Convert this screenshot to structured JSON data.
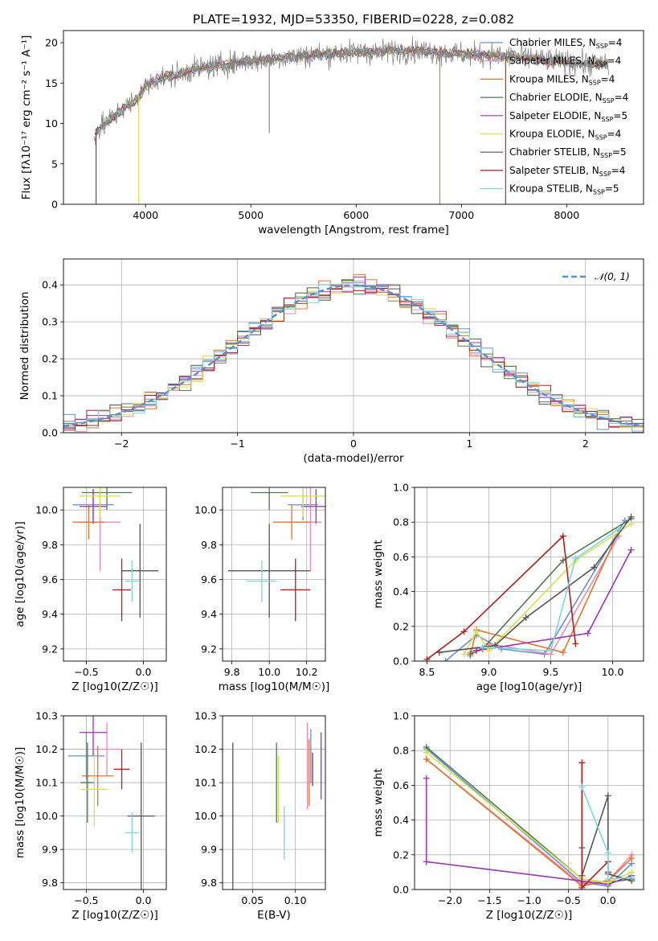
{
  "figure_title": "PLATE=1932, MJD=53350, FIBERID=0228, z=0.082",
  "colors": {
    "Chabrier MILES": "#6a8fd6",
    "Salpeter MILES": "#e98bb3",
    "Kroupa MILES": "#e0752d",
    "Chabrier ELODIE": "#4f7a4f",
    "Salpeter ELODIE": "#9b35b0",
    "Kroupa ELODIE": "#d7e04e",
    "Chabrier STELIB": "#555555",
    "Salpeter STELIB": "#b21d1d",
    "Kroupa STELIB": "#7dd6dc",
    "gaussian": "#5b8dd4",
    "observed": "#808080"
  },
  "chart_data": [
    {
      "id": "spectrum",
      "type": "line",
      "title": "PLATE=1932, MJD=53350, FIBERID=0228, z=0.082",
      "xlabel": "wavelength [Angstrom, rest frame]",
      "ylabel": "Flux [fλ10⁻¹⁷ erg cm⁻² s⁻¹ A⁻¹]",
      "xlim": [
        3220,
        8730
      ],
      "ylim": [
        0,
        21.5
      ],
      "xticks": [
        4000,
        5000,
        6000,
        7000,
        8000
      ],
      "xtick_labels": [
        "4000",
        "5000",
        "6000",
        "7000",
        "8000"
      ],
      "yticks": [
        0,
        5,
        10,
        15,
        20
      ],
      "ytick_labels": [
        "0",
        "5",
        "10",
        "15",
        "20"
      ],
      "grid": false,
      "legend": "upper right",
      "legend_entries": [
        {
          "name": "Chabrier MILES",
          "ssp": "4"
        },
        {
          "name": "Salpeter MILES",
          "ssp": "4"
        },
        {
          "name": "Kroupa MILES",
          "ssp": "4"
        },
        {
          "name": "Chabrier ELODIE",
          "ssp": "4"
        },
        {
          "name": "Salpeter ELODIE",
          "ssp": "5"
        },
        {
          "name": "Kroupa ELODIE",
          "ssp": "4"
        },
        {
          "name": "Chabrier STELIB",
          "ssp": "5"
        },
        {
          "name": "Salpeter STELIB",
          "ssp": "4"
        },
        {
          "name": "Kroupa STELIB",
          "ssp": "5"
        }
      ],
      "continuum": {
        "x": [
          3500,
          3600,
          3700,
          3800,
          3900,
          4000,
          4100,
          4200,
          4300,
          4400,
          4500,
          4600,
          4700,
          4800,
          5000,
          5200,
          5400,
          5600,
          5800,
          6000,
          6200,
          6400,
          6600,
          6800,
          7000,
          7200,
          7400,
          7600,
          7800,
          8000,
          8200,
          8400
        ],
        "y": [
          8.5,
          9.8,
          10.8,
          12.0,
          12.8,
          14.6,
          15.4,
          15.8,
          16.0,
          16.5,
          16.8,
          17.0,
          17.2,
          17.4,
          17.8,
          18.0,
          18.3,
          18.5,
          18.7,
          18.8,
          18.9,
          19.0,
          19.0,
          18.8,
          18.6,
          18.5,
          18.3,
          18.2,
          17.8,
          17.6,
          17.4,
          17.3
        ]
      },
      "dips": [
        {
          "x": 3530,
          "y": 0,
          "label": "Salpeter STELIB"
        },
        {
          "x": 3935,
          "y": 0,
          "label": "Kroupa ELODIE"
        },
        {
          "x": 5175,
          "y": 8.8,
          "label": "observed"
        },
        {
          "x": 6795,
          "y": 0,
          "label": "Kroupa MILES"
        },
        {
          "x": 7420,
          "y": 0,
          "label": "Salpeter STELIB"
        }
      ]
    },
    {
      "id": "residuals",
      "type": "histogram",
      "xlabel": "(data-model)/error",
      "ylabel": "Normed distribution",
      "xlim": [
        -2.5,
        2.5
      ],
      "ylim": [
        0,
        0.47
      ],
      "xticks": [
        -2,
        -1,
        0,
        1,
        2
      ],
      "xtick_labels": [
        "−2",
        "−1",
        "0",
        "1",
        "2"
      ],
      "yticks": [
        0,
        0.1,
        0.2,
        0.3,
        0.4
      ],
      "ytick_labels": [
        "0.0",
        "0.1",
        "0.2",
        "0.3",
        "0.4"
      ],
      "grid": true,
      "legend": "upper right",
      "legend_label": "𝒩(0, 1)",
      "bin_width": 0.1
    },
    {
      "id": "age-vs-Z",
      "type": "errorbar",
      "xlabel": "Z [log10(Z/Z☉)]",
      "ylabel": "age  [log10(age/yr)]",
      "xlim": [
        -0.7,
        0.2
      ],
      "ylim": [
        9.13,
        10.13
      ],
      "xticks": [
        -0.5,
        0.0
      ],
      "xtick_labels": [
        "−0.5",
        "0.0"
      ],
      "yticks": [
        9.2,
        9.4,
        9.6,
        9.8,
        10.0
      ],
      "ytick_labels": [
        "9.2",
        "9.4",
        "9.6",
        "9.8",
        "10.0"
      ],
      "grid": true,
      "points": [
        {
          "series": "Chabrier MILES",
          "x": -0.44,
          "xerr": 0.18,
          "y": 10.03,
          "yerr": 0.09
        },
        {
          "series": "Salpeter MILES",
          "x": -0.38,
          "xerr": 0.18,
          "y": 9.93,
          "yerr": 0.28
        },
        {
          "series": "Kroupa MILES",
          "x": -0.48,
          "xerr": 0.14,
          "y": 9.93,
          "yerr": 0.1
        },
        {
          "series": "Chabrier ELODIE",
          "x": -0.32,
          "xerr": 0.22,
          "y": 10.1,
          "yerr": 0.1
        },
        {
          "series": "Salpeter ELODIE",
          "x": -0.44,
          "xerr": 0.12,
          "y": 10.02,
          "yerr": 0.1
        },
        {
          "series": "Kroupa ELODIE",
          "x": -0.38,
          "xerr": 0.18,
          "y": 10.08,
          "yerr": 0.12
        },
        {
          "series": "Chabrier STELIB",
          "x": -0.03,
          "xerr": 0.16,
          "y": 9.65,
          "yerr": 0.27
        },
        {
          "series": "Salpeter STELIB",
          "x": -0.19,
          "xerr": 0.08,
          "y": 9.54,
          "yerr": 0.18
        },
        {
          "series": "Kroupa STELIB",
          "x": -0.1,
          "xerr": 0.06,
          "y": 9.59,
          "yerr": 0.12
        }
      ]
    },
    {
      "id": "age-vs-mass",
      "type": "errorbar",
      "xlabel": "mass [log10(M/M☉)]",
      "ylabel": "",
      "xlim": [
        9.75,
        10.3
      ],
      "ylim": [
        9.13,
        10.13
      ],
      "xticks": [
        9.8,
        10.0,
        10.2
      ],
      "xtick_labels": [
        "9.8",
        "10.0",
        "10.2"
      ],
      "yticks": [
        9.2,
        9.4,
        9.6,
        9.8,
        10.0
      ],
      "ytick_labels": [
        "9.2",
        "9.4",
        "9.6",
        "9.8",
        "10.0"
      ],
      "grid": true,
      "points": [
        {
          "series": "Chabrier MILES",
          "x": 10.18,
          "xerr": 0.08,
          "y": 10.03,
          "yerr": 0.09
        },
        {
          "series": "Salpeter MILES",
          "x": 10.22,
          "xerr": 0.06,
          "y": 9.93,
          "yerr": 0.28
        },
        {
          "series": "Kroupa MILES",
          "x": 10.12,
          "xerr": 0.1,
          "y": 9.93,
          "yerr": 0.1
        },
        {
          "series": "Chabrier ELODIE",
          "x": 10.0,
          "xerr": 0.1,
          "y": 10.1,
          "yerr": 0.1
        },
        {
          "series": "Salpeter ELODIE",
          "x": 10.25,
          "xerr": 0.08,
          "y": 10.02,
          "yerr": 0.1
        },
        {
          "series": "Kroupa ELODIE",
          "x": 10.18,
          "xerr": 0.12,
          "y": 10.08,
          "yerr": 0.12
        },
        {
          "series": "Chabrier STELIB",
          "x": 10.0,
          "xerr": 0.22,
          "y": 9.65,
          "yerr": 0.27
        },
        {
          "series": "Salpeter STELIB",
          "x": 10.14,
          "xerr": 0.08,
          "y": 9.54,
          "yerr": 0.18
        },
        {
          "series": "Kroupa STELIB",
          "x": 9.96,
          "xerr": 0.08,
          "y": 9.59,
          "yerr": 0.12
        }
      ]
    },
    {
      "id": "massweight-vs-age",
      "type": "line",
      "xlabel": "age  [log10(age/yr)]",
      "ylabel": "mass weight",
      "xlim": [
        8.4,
        10.25
      ],
      "ylim": [
        0,
        1.0
      ],
      "xticks": [
        8.5,
        9.0,
        9.5,
        10.0
      ],
      "xtick_labels": [
        "8.5",
        "9.0",
        "9.5",
        "10.0"
      ],
      "yticks": [
        0,
        0.2,
        0.4,
        0.6,
        0.8,
        1.0
      ],
      "ytick_labels": [
        "0.0",
        "0.2",
        "0.4",
        "0.6",
        "0.8",
        "1.0"
      ],
      "grid": true,
      "series": [
        {
          "name": "Chabrier MILES",
          "x": [
            8.65,
            8.9,
            9.1,
            9.45,
            10.1
          ],
          "y": [
            0.0,
            0.15,
            0.07,
            0.04,
            0.81
          ]
        },
        {
          "name": "Salpeter MILES",
          "x": [
            8.85,
            9.0,
            9.5,
            10.05
          ],
          "y": [
            0.05,
            0.1,
            0.04,
            0.72
          ]
        },
        {
          "name": "Kroupa MILES",
          "x": [
            8.85,
            8.9,
            9.6,
            10.05
          ],
          "y": [
            0.03,
            0.18,
            0.05,
            0.75
          ]
        },
        {
          "name": "Chabrier ELODIE",
          "x": [
            8.85,
            8.95,
            9.6,
            10.15
          ],
          "y": [
            0.04,
            0.07,
            0.58,
            0.82
          ]
        },
        {
          "name": "Salpeter ELODIE",
          "x": [
            8.9,
            9.8,
            10.15
          ],
          "y": [
            0.06,
            0.16,
            0.64
          ]
        },
        {
          "name": "Kroupa ELODIE",
          "x": [
            8.8,
            8.9,
            9.0,
            9.7,
            10.15
          ],
          "y": [
            0.04,
            0.17,
            0.06,
            0.58,
            0.79
          ]
        },
        {
          "name": "Chabrier STELIB",
          "x": [
            8.6,
            9.05,
            9.3,
            9.85,
            10.15
          ],
          "y": [
            0.05,
            0.09,
            0.25,
            0.54,
            0.83
          ]
        },
        {
          "name": "Salpeter STELIB",
          "x": [
            8.5,
            8.8,
            9.6,
            9.7
          ],
          "y": [
            0.01,
            0.17,
            0.72,
            0.1
          ]
        },
        {
          "name": "Kroupa STELIB",
          "x": [
            8.95,
            9.5,
            9.7,
            10.05
          ],
          "y": [
            0.08,
            0.06,
            0.59,
            0.76
          ]
        }
      ]
    },
    {
      "id": "mass-vs-Z",
      "type": "errorbar",
      "xlabel": "Z [log10(Z/Z☉)]",
      "ylabel": "mass [log10(M/M☉)]",
      "xlim": [
        -0.7,
        0.2
      ],
      "ylim": [
        9.78,
        10.3
      ],
      "xticks": [
        -0.5,
        0.0
      ],
      "xtick_labels": [
        "−0.5",
        "0.0"
      ],
      "yticks": [
        9.8,
        9.9,
        10.0,
        10.1,
        10.2,
        10.3
      ],
      "ytick_labels": [
        "9.8",
        "9.9",
        "10.0",
        "10.1",
        "10.2",
        "10.3"
      ],
      "grid": true,
      "points": [
        {
          "series": "Chabrier MILES",
          "x": -0.5,
          "xerr": 0.16,
          "y": 10.18,
          "yerr": 0.07
        },
        {
          "series": "Salpeter MILES",
          "x": -0.32,
          "xerr": 0.12,
          "y": 10.2,
          "yerr": 0.08
        },
        {
          "series": "Kroupa MILES",
          "x": -0.4,
          "xerr": 0.14,
          "y": 10.12,
          "yerr": 0.09
        },
        {
          "series": "Chabrier ELODIE",
          "x": -0.49,
          "xerr": 0.06,
          "y": 10.1,
          "yerr": 0.12
        },
        {
          "series": "Salpeter ELODIE",
          "x": -0.44,
          "xerr": 0.12,
          "y": 10.25,
          "yerr": 0.07
        },
        {
          "series": "Kroupa ELODIE",
          "x": -0.43,
          "xerr": 0.12,
          "y": 10.08,
          "yerr": 0.11
        },
        {
          "series": "Chabrier STELIB",
          "x": -0.02,
          "xerr": 0.12,
          "y": 10.0,
          "yerr": 0.22
        },
        {
          "series": "Salpeter STELIB",
          "x": -0.19,
          "xerr": 0.07,
          "y": 10.14,
          "yerr": 0.06
        },
        {
          "series": "Kroupa STELIB",
          "x": -0.1,
          "xerr": 0.06,
          "y": 9.95,
          "yerr": 0.06
        }
      ]
    },
    {
      "id": "mass-vs-ebv",
      "type": "errorbar",
      "xlabel": "E(B-V)",
      "ylabel": "",
      "xlim": [
        0.015,
        0.135
      ],
      "ylim": [
        9.78,
        10.3
      ],
      "xticks": [
        0.05,
        0.1
      ],
      "xtick_labels": [
        "0.05",
        "0.10"
      ],
      "yticks": [
        9.8,
        9.9,
        10.0,
        10.1,
        10.2,
        10.3
      ],
      "ytick_labels": [
        "9.8",
        "9.9",
        "10.0",
        "10.1",
        "10.2",
        "10.3"
      ],
      "grid": true,
      "points": [
        {
          "series": "Chabrier MILES",
          "x": 0.118,
          "xerr": 0,
          "y": 10.18,
          "yerr": 0.08
        },
        {
          "series": "Salpeter MILES",
          "x": 0.114,
          "xerr": 0,
          "y": 10.15,
          "yerr": 0.13
        },
        {
          "series": "Kroupa MILES",
          "x": 0.116,
          "xerr": 0,
          "y": 10.13,
          "yerr": 0.1
        },
        {
          "series": "Chabrier ELODIE",
          "x": 0.078,
          "xerr": 0,
          "y": 10.1,
          "yerr": 0.12
        },
        {
          "series": "Salpeter ELODIE",
          "x": 0.13,
          "xerr": 0,
          "y": 10.15,
          "yerr": 0.1
        },
        {
          "series": "Kroupa ELODIE",
          "x": 0.08,
          "xerr": 0,
          "y": 10.08,
          "yerr": 0.1
        },
        {
          "series": "Chabrier STELIB",
          "x": 0.027,
          "xerr": 0,
          "y": 10.0,
          "yerr": 0.22
        },
        {
          "series": "Salpeter STELIB",
          "x": 0.12,
          "xerr": 0,
          "y": 10.14,
          "yerr": 0.05
        },
        {
          "series": "Kroupa STELIB",
          "x": 0.087,
          "xerr": 0,
          "y": 9.95,
          "yerr": 0.08
        }
      ]
    },
    {
      "id": "massweight-vs-Z",
      "type": "line",
      "xlabel": "Z [log10(Z/Z☉)]",
      "ylabel": "mass weight",
      "xlim": [
        -2.45,
        0.45
      ],
      "ylim": [
        0,
        1.0
      ],
      "xticks": [
        -2.0,
        -1.5,
        -1.0,
        -0.5,
        0.0
      ],
      "xtick_labels": [
        "−2.0",
        "−1.5",
        "−1.0",
        "−0.5",
        "0.0"
      ],
      "yticks": [
        0,
        0.2,
        0.4,
        0.6,
        0.8,
        1.0
      ],
      "ytick_labels": [
        "0.0",
        "0.2",
        "0.4",
        "0.6",
        "0.8",
        "1.0"
      ],
      "grid": true,
      "series": [
        {
          "name": "Chabrier MILES",
          "x": [
            -2.3,
            -0.33,
            0.0,
            0.3
          ],
          "y": [
            0.81,
            0.04,
            0.02,
            0.15
          ]
        },
        {
          "name": "Salpeter MILES",
          "x": [
            -2.3,
            -0.33,
            0.0,
            0.3
          ],
          "y": [
            0.75,
            0.03,
            0.05,
            0.2
          ]
        },
        {
          "name": "Kroupa MILES",
          "x": [
            -2.3,
            -0.33,
            0.0,
            0.3
          ],
          "y": [
            0.75,
            0.02,
            0.05,
            0.18
          ]
        },
        {
          "name": "Chabrier ELODIE",
          "x": [
            -2.3,
            -0.33,
            0.0,
            0.3
          ],
          "y": [
            0.82,
            0.06,
            0.04,
            0.06
          ]
        },
        {
          "name": "Salpeter ELODIE",
          "x": [
            -2.3,
            -2.3,
            0.0,
            0.3
          ],
          "y": [
            0.64,
            0.16,
            0.03,
            0.08
          ]
        },
        {
          "name": "Kroupa ELODIE",
          "x": [
            -2.3,
            -0.33,
            0.0,
            0.3
          ],
          "y": [
            0.79,
            0.06,
            0.04,
            0.1
          ]
        },
        {
          "name": "Chabrier STELIB",
          "x": [
            -0.33,
            -0.33,
            0.0,
            0.0,
            0.3
          ],
          "y": [
            0.24,
            0.08,
            0.54,
            0.09,
            0.05
          ]
        },
        {
          "name": "Salpeter STELIB",
          "x": [
            -0.33,
            -0.33,
            0.0,
            0.0
          ],
          "y": [
            0.73,
            0.01,
            0.16,
            0.1
          ]
        },
        {
          "name": "Kroupa STELIB",
          "x": [
            -0.33,
            0.0,
            0.0,
            0.3
          ],
          "y": [
            0.59,
            0.21,
            0.06,
            0.07
          ]
        }
      ]
    }
  ]
}
